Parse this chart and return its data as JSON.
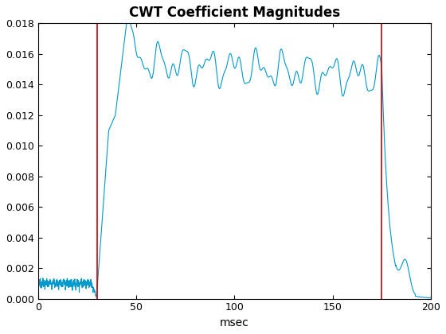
{
  "title": "CWT Coefficient Magnitudes",
  "xlabel": "msec",
  "xlim": [
    0,
    200
  ],
  "ylim": [
    0,
    0.018
  ],
  "yticks": [
    0,
    0.002,
    0.004,
    0.006,
    0.008,
    0.01,
    0.012,
    0.014,
    0.016,
    0.018
  ],
  "xticks": [
    0,
    50,
    100,
    150,
    200
  ],
  "red_line1_x": 30,
  "red_line2_x": 175,
  "line_color": "#0099CC",
  "red_color": "#CC0000",
  "background": "#FFFFFF",
  "seed": 7,
  "n_points": 4000
}
